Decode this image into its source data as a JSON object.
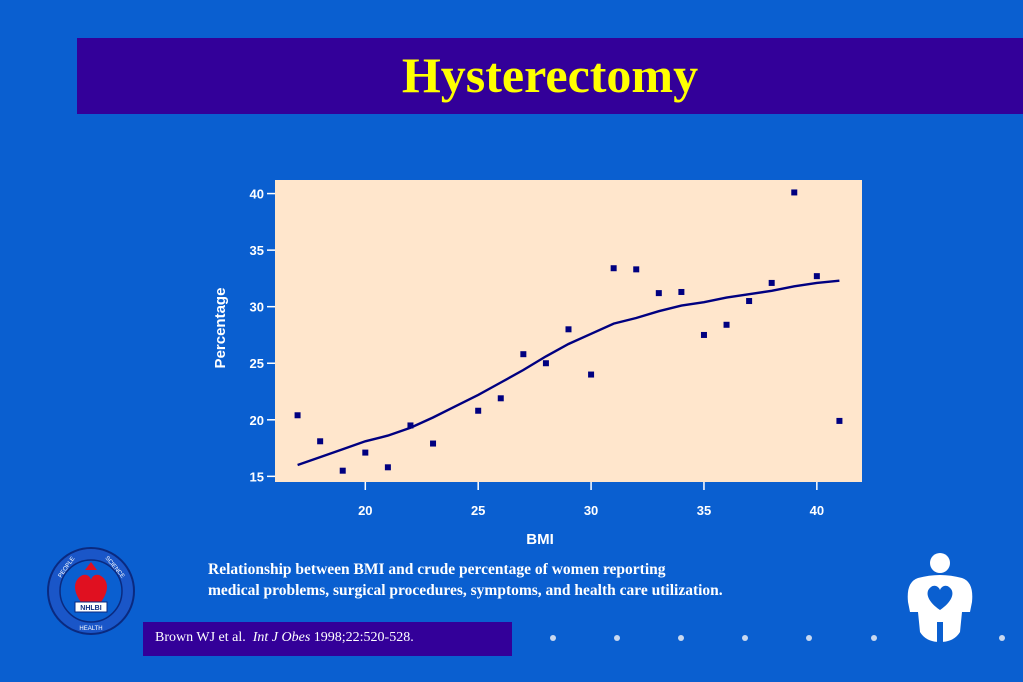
{
  "slide": {
    "title": "Hysterectomy",
    "caption_line1": "Relationship between BMI and crude percentage of women reporting",
    "caption_line2": "medical problems, surgical procedures, symptoms, and health care utilization.",
    "citation_authors": "Brown WJ et al.",
    "citation_journal": "Int J Obes",
    "citation_details": "1998;22:520-528.",
    "logo_text": {
      "left_top": "PEOPLE",
      "right_top": "SCIENCE",
      "center": "NHLBI",
      "bottom": "HEALTH"
    }
  },
  "colors": {
    "background": "#0a5fd0",
    "title_bar": "#330099",
    "title_text": "#ffff00",
    "plot_area": "#ffe6cc",
    "data_marks": "#000080"
  },
  "chart_data": {
    "type": "scatter",
    "xlabel": "BMI",
    "ylabel": "Percentage",
    "xlim": [
      16,
      42
    ],
    "ylim": [
      14.5,
      41.2
    ],
    "xticks": [
      20,
      25,
      30,
      35,
      40
    ],
    "yticks": [
      15,
      20,
      25,
      30,
      35,
      40
    ],
    "grid": false,
    "points": [
      {
        "x": 17,
        "y": 20.4
      },
      {
        "x": 18,
        "y": 18.1
      },
      {
        "x": 19,
        "y": 15.5
      },
      {
        "x": 20,
        "y": 17.1
      },
      {
        "x": 21,
        "y": 15.8
      },
      {
        "x": 22,
        "y": 19.5
      },
      {
        "x": 23,
        "y": 17.9
      },
      {
        "x": 25,
        "y": 20.8
      },
      {
        "x": 26,
        "y": 21.9
      },
      {
        "x": 27,
        "y": 25.8
      },
      {
        "x": 28,
        "y": 25.0
      },
      {
        "x": 29,
        "y": 28.0
      },
      {
        "x": 30,
        "y": 24.0
      },
      {
        "x": 31,
        "y": 33.4
      },
      {
        "x": 32,
        "y": 33.3
      },
      {
        "x": 33,
        "y": 31.2
      },
      {
        "x": 34,
        "y": 31.3
      },
      {
        "x": 35,
        "y": 27.5
      },
      {
        "x": 36,
        "y": 28.4
      },
      {
        "x": 37,
        "y": 30.5
      },
      {
        "x": 38,
        "y": 32.1
      },
      {
        "x": 39,
        "y": 40.1
      },
      {
        "x": 40,
        "y": 32.7
      },
      {
        "x": 41,
        "y": 19.9
      }
    ],
    "trend_line": {
      "x": [
        17,
        18,
        19,
        20,
        21,
        22,
        23,
        24,
        25,
        26,
        27,
        28,
        29,
        30,
        31,
        32,
        33,
        34,
        35,
        36,
        37,
        38,
        39,
        40,
        41
      ],
      "y": [
        16.0,
        16.7,
        17.4,
        18.1,
        18.6,
        19.3,
        20.2,
        21.2,
        22.2,
        23.3,
        24.4,
        25.6,
        26.7,
        27.6,
        28.5,
        29.0,
        29.6,
        30.1,
        30.4,
        30.8,
        31.1,
        31.4,
        31.8,
        32.1,
        32.3
      ]
    }
  }
}
